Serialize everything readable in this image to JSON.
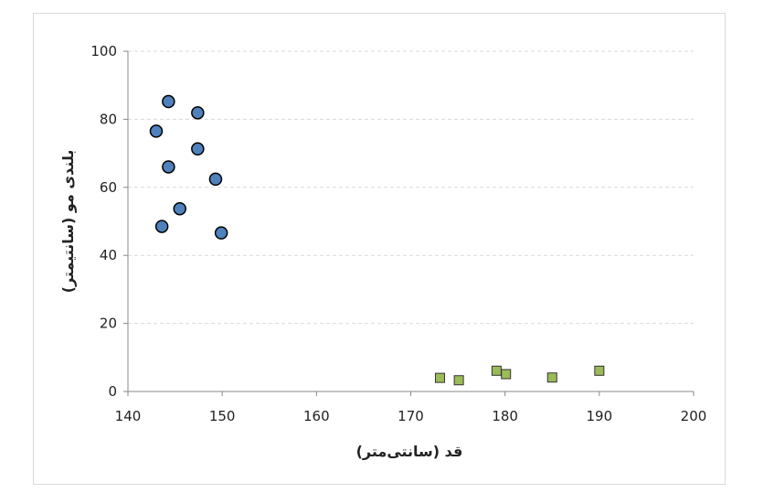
{
  "chart_data": {
    "type": "scatter",
    "xlabel": "قد (سانتی‌متر)",
    "ylabel": "بلندی مو (سانتیمتر)",
    "xlim": [
      140,
      200
    ],
    "ylim": [
      0,
      100
    ],
    "xticks": [
      "140",
      "150",
      "160",
      "170",
      "180",
      "190",
      "200"
    ],
    "yticks": [
      "0",
      "20",
      "40",
      "60",
      "80",
      "100"
    ],
    "grid": "horizontal dashed",
    "legend": "none",
    "series": [
      {
        "marker": "circle",
        "color": "#4f81bd",
        "points": [
          [
            144.3,
            85.2
          ],
          [
            147.4,
            81.9
          ],
          [
            143.0,
            76.5
          ],
          [
            147.4,
            71.3
          ],
          [
            144.3,
            66.0
          ],
          [
            149.3,
            62.4
          ],
          [
            145.5,
            53.7
          ],
          [
            143.6,
            48.5
          ],
          [
            149.9,
            46.6
          ]
        ]
      },
      {
        "marker": "square",
        "color": "#9bbb59",
        "points": [
          [
            173.1,
            4.0
          ],
          [
            175.1,
            3.3
          ],
          [
            179.1,
            6.1
          ],
          [
            180.1,
            5.1
          ],
          [
            185.0,
            4.1
          ],
          [
            190.0,
            6.1
          ]
        ]
      }
    ]
  }
}
